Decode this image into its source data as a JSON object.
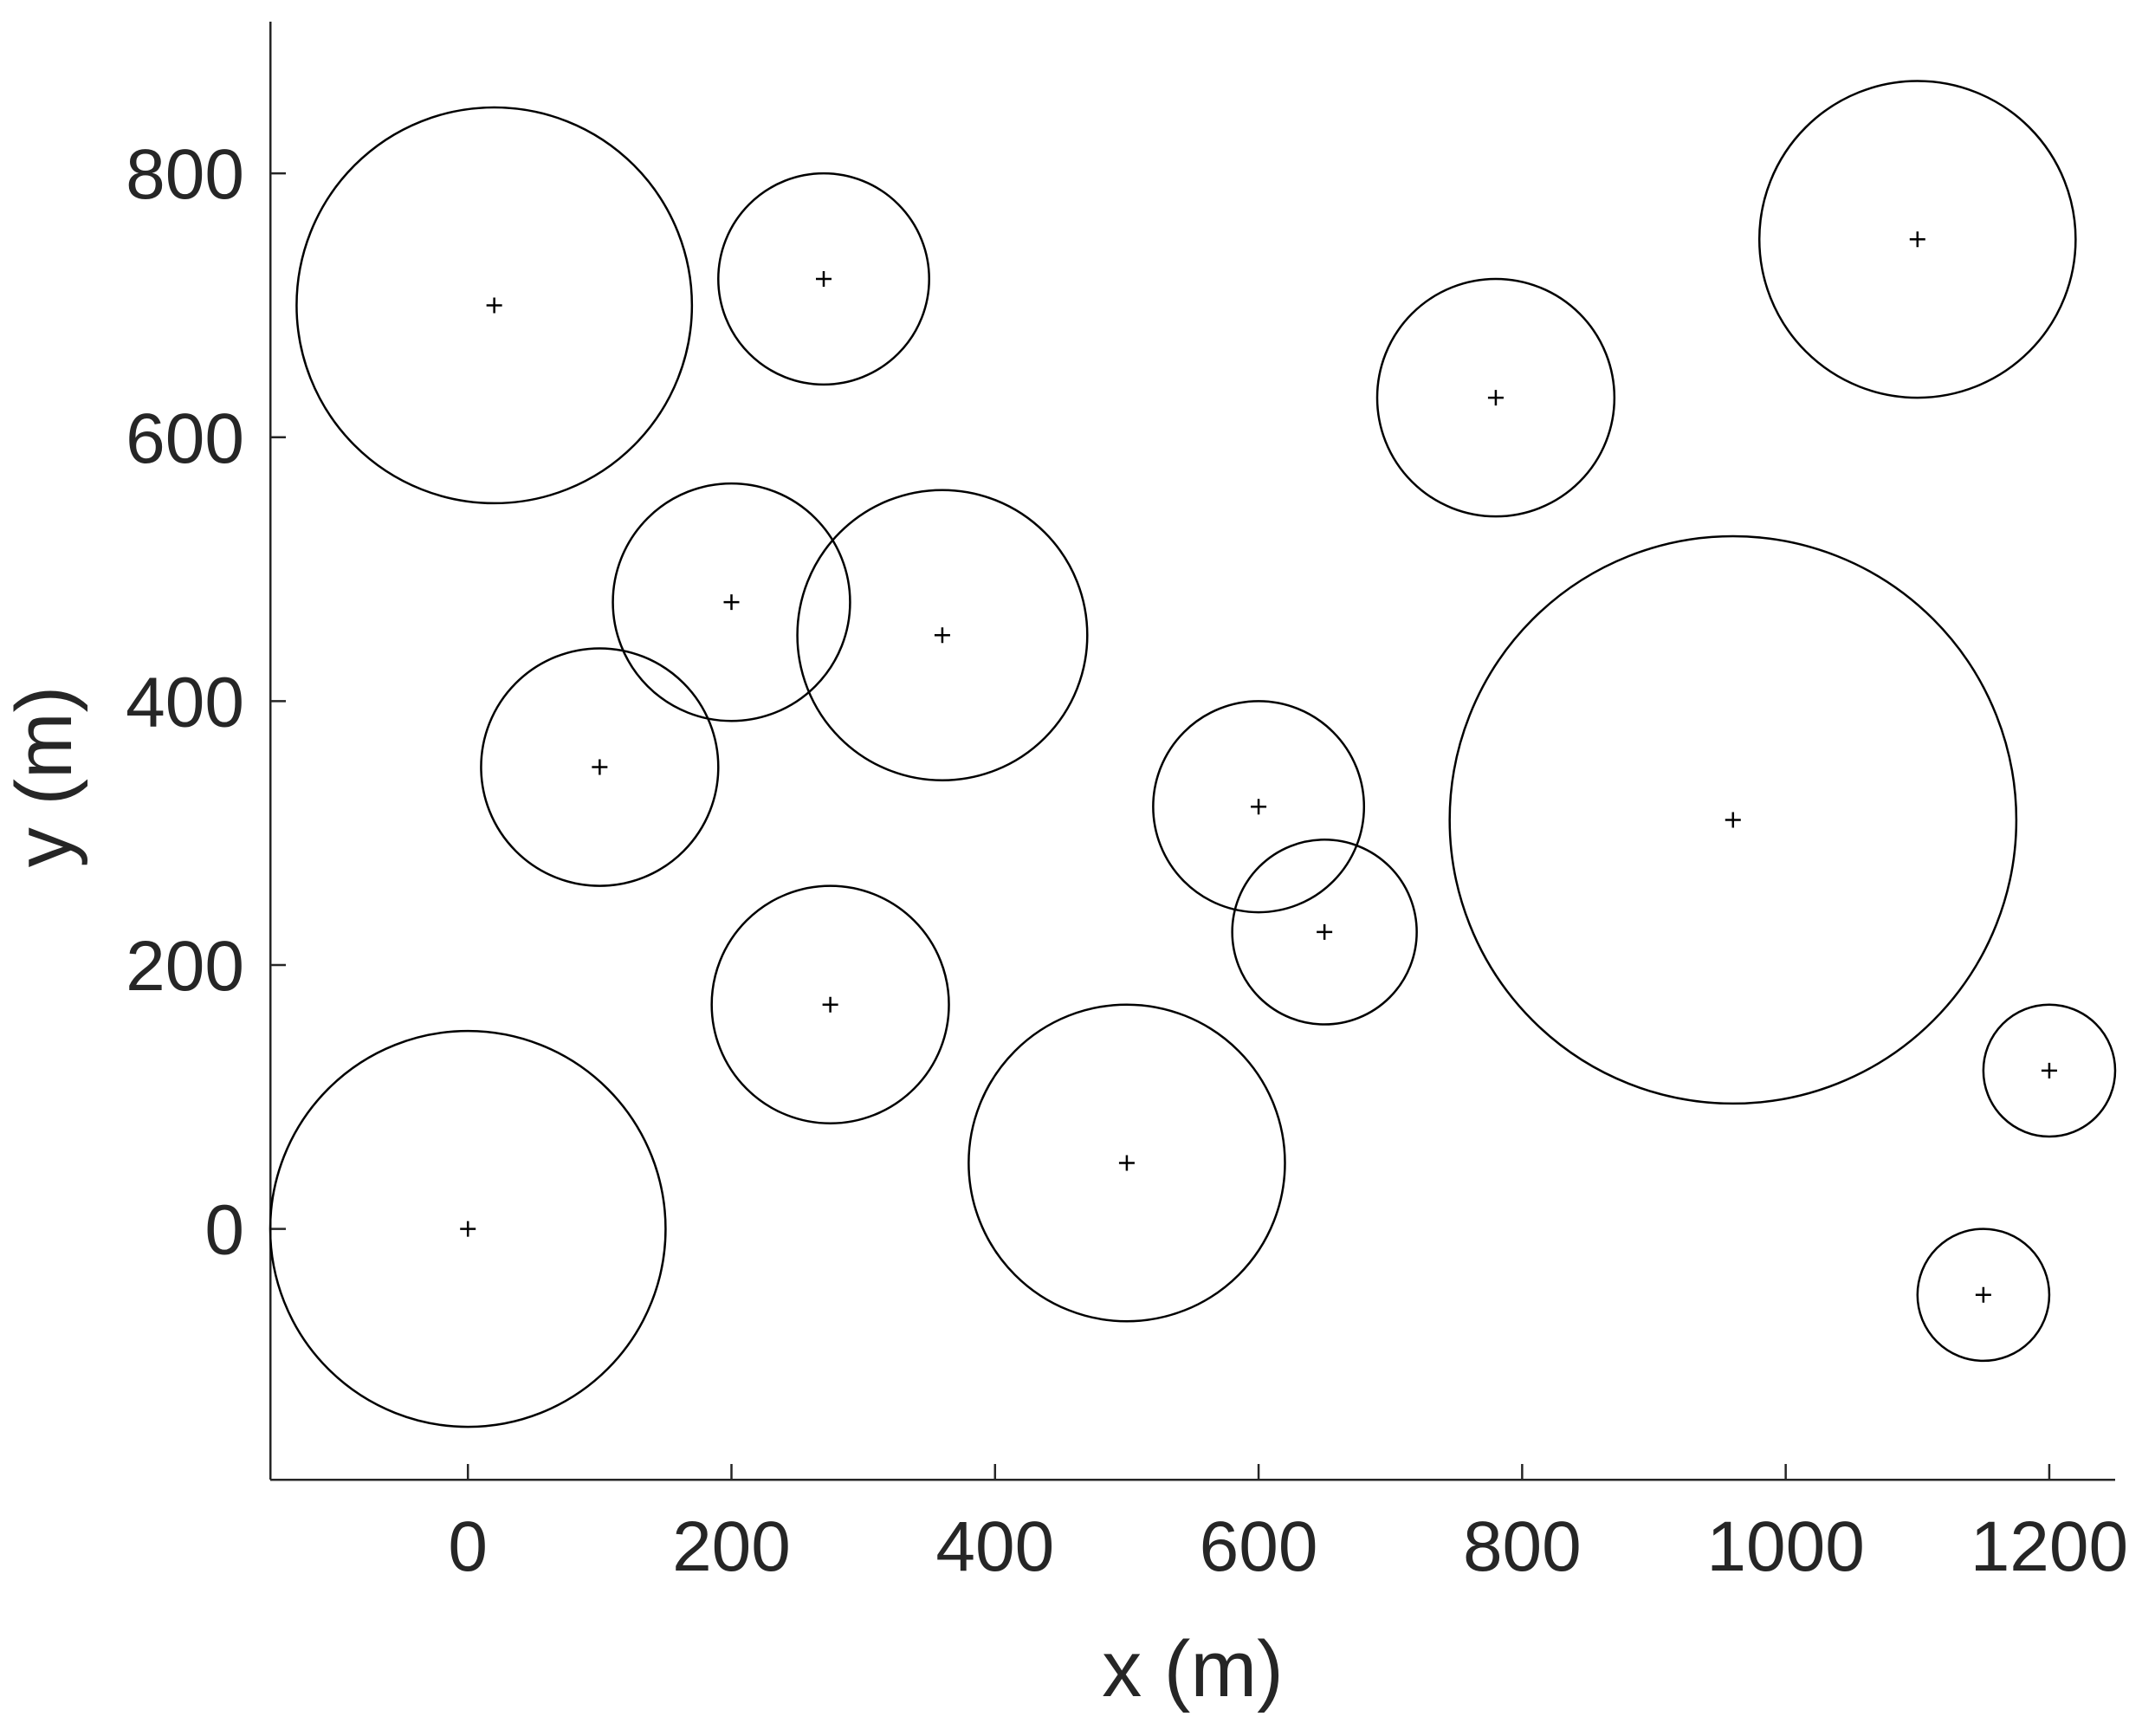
{
  "chart_data": {
    "type": "scatter",
    "title": "",
    "xlabel": "x (m)",
    "ylabel": "y (m)",
    "xlim": [
      -150,
      1250
    ],
    "ylim": [
      -190,
      915
    ],
    "xticks": [
      0,
      200,
      400,
      600,
      800,
      1000,
      1200
    ],
    "yticks": [
      0,
      200,
      400,
      600,
      800
    ],
    "grid": false,
    "marker": "+",
    "colors": {
      "axis": "#262626",
      "marks": "#000000"
    },
    "series": [
      {
        "points": [
          {
            "x": 0,
            "y": 0,
            "r": 150
          },
          {
            "x": 20,
            "y": 700,
            "r": 150
          },
          {
            "x": 270,
            "y": 720,
            "r": 80
          },
          {
            "x": 200,
            "y": 475,
            "r": 90
          },
          {
            "x": 360,
            "y": 450,
            "r": 110
          },
          {
            "x": 100,
            "y": 350,
            "r": 90
          },
          {
            "x": 275,
            "y": 170,
            "r": 90
          },
          {
            "x": 500,
            "y": 50,
            "r": 120
          },
          {
            "x": 600,
            "y": 320,
            "r": 80
          },
          {
            "x": 650,
            "y": 225,
            "r": 70
          },
          {
            "x": 780,
            "y": 630,
            "r": 90
          },
          {
            "x": 960,
            "y": 310,
            "r": 215
          },
          {
            "x": 1100,
            "y": 750,
            "r": 120
          },
          {
            "x": 1200,
            "y": 120,
            "r": 50
          },
          {
            "x": 1150,
            "y": -50,
            "r": 50
          }
        ]
      }
    ]
  }
}
